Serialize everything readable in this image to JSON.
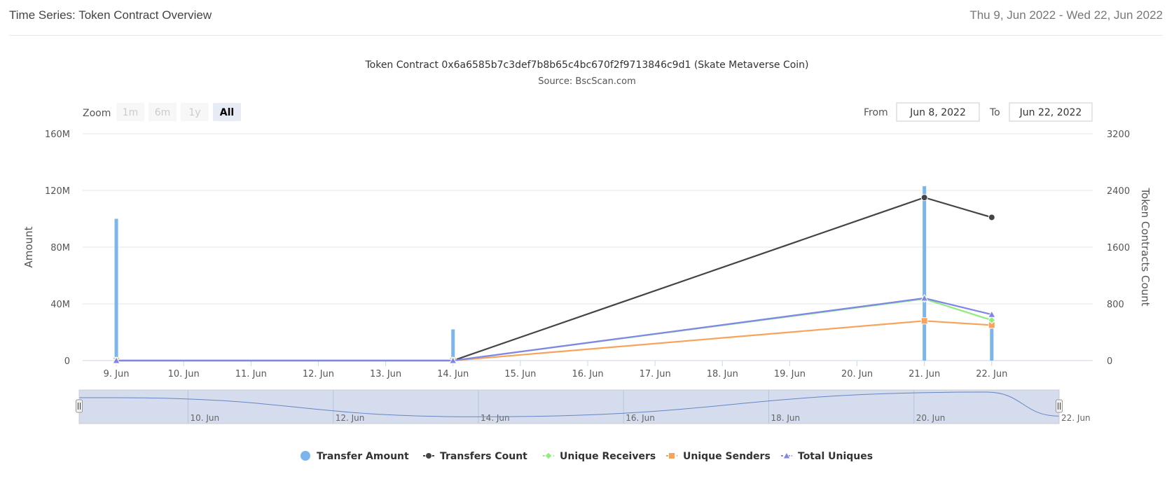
{
  "header": {
    "title": "Time Series: Token Contract Overview",
    "date_range": "Thu 9, Jun 2022 - Wed 22, Jun 2022"
  },
  "range_selector": {
    "zoom_label": "Zoom",
    "buttons": [
      "1m",
      "6m",
      "1y",
      "All"
    ],
    "active": "All",
    "from_label": "From",
    "from_value": "Jun 8, 2022",
    "to_label": "To",
    "to_value": "Jun 22, 2022"
  },
  "navigator": {
    "labels": [
      "10. Jun",
      "12. Jun",
      "14. Jun",
      "16. Jun",
      "18. Jun",
      "20. Jun",
      "22. Jun"
    ],
    "handle_icon": "grip-handle-icon"
  },
  "colors": {
    "transfer_amount": "#7cb5ec",
    "transfers_count": "#434348",
    "unique_receivers": "#90ed7d",
    "unique_senders": "#f7a35c",
    "total_uniques": "#8085e9",
    "navigator_fill": "#ccd6eb",
    "navigator_line": "#6685c2"
  },
  "chart_data": {
    "type": "line",
    "title": "Token Contract 0x6a6585b7c3def7b8b65c4bc670f2f9713846c9d1 (Skate Metaverse Coin)",
    "subtitle": "Source: BscScan.com",
    "x_ticks": [
      "9. Jun",
      "10. Jun",
      "11. Jun",
      "12. Jun",
      "13. Jun",
      "14. Jun",
      "15. Jun",
      "16. Jun",
      "17. Jun",
      "18. Jun",
      "19. Jun",
      "20. Jun",
      "21. Jun",
      "22. Jun"
    ],
    "x": [
      "2022-06-09",
      "2022-06-14",
      "2022-06-21",
      "2022-06-22"
    ],
    "y_left": {
      "label": "Amount",
      "ticks": [
        "0",
        "40M",
        "80M",
        "120M",
        "160M"
      ],
      "range": [
        0,
        160000000
      ]
    },
    "y_right": {
      "label": "Token Contracts Count",
      "ticks": [
        "0",
        "800",
        "1600",
        "2400",
        "3200"
      ],
      "range": [
        0,
        3200
      ]
    },
    "grid": true,
    "legend_position": "bottom",
    "series": [
      {
        "name": "Transfer Amount",
        "type": "column",
        "axis": "left",
        "values": [
          100000000,
          22000000,
          123000000,
          25000000
        ]
      },
      {
        "name": "Transfers Count",
        "type": "line",
        "axis": "right",
        "values": [
          0,
          0,
          2300,
          2020
        ]
      },
      {
        "name": "Unique Receivers",
        "type": "line",
        "axis": "right",
        "values": [
          0,
          0,
          870,
          570
        ]
      },
      {
        "name": "Unique Senders",
        "type": "line",
        "axis": "right",
        "values": [
          0,
          0,
          560,
          500
        ]
      },
      {
        "name": "Total Uniques",
        "type": "line",
        "axis": "right",
        "values": [
          0,
          0,
          880,
          650
        ]
      }
    ]
  }
}
